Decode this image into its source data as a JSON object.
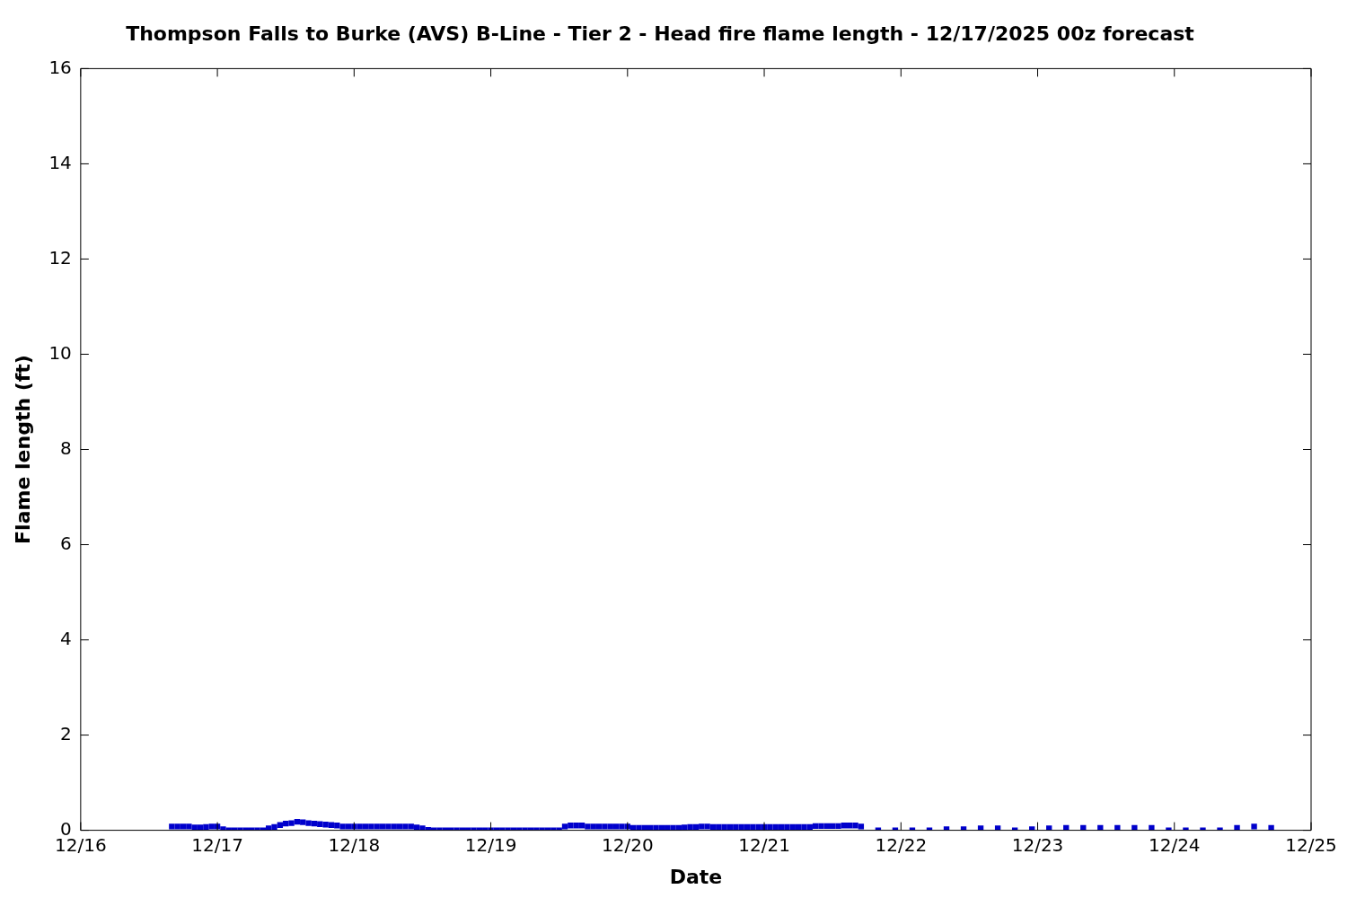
{
  "chart_data": {
    "type": "scatter",
    "title": "Thompson Falls to Burke (AVS) B-Line - Tier 2 - Head fire flame length - 12/17/2025 00z forecast",
    "xlabel": "Date",
    "ylabel": "Flame length (ft)",
    "marker": "square",
    "legend": false,
    "xlim": [
      "2025-12-16",
      "2025-12-25"
    ],
    "xticks": [
      {
        "value": "2025-12-16",
        "label": "12/16"
      },
      {
        "value": "2025-12-17",
        "label": "12/17"
      },
      {
        "value": "2025-12-18",
        "label": "12/18"
      },
      {
        "value": "2025-12-19",
        "label": "12/19"
      },
      {
        "value": "2025-12-20",
        "label": "12/20"
      },
      {
        "value": "2025-12-21",
        "label": "12/21"
      },
      {
        "value": "2025-12-22",
        "label": "12/22"
      },
      {
        "value": "2025-12-23",
        "label": "12/23"
      },
      {
        "value": "2025-12-24",
        "label": "12/24"
      },
      {
        "value": "2025-12-25",
        "label": "12/25"
      }
    ],
    "ylim": [
      0,
      16
    ],
    "yticks": [
      0,
      2,
      4,
      6,
      8,
      10,
      12,
      14,
      16
    ],
    "x": [
      "2025-12-16T16:00",
      "2025-12-16T17:00",
      "2025-12-16T18:00",
      "2025-12-16T19:00",
      "2025-12-16T20:00",
      "2025-12-16T21:00",
      "2025-12-16T22:00",
      "2025-12-16T23:00",
      "2025-12-17T00:00",
      "2025-12-17T01:00",
      "2025-12-17T02:00",
      "2025-12-17T03:00",
      "2025-12-17T04:00",
      "2025-12-17T05:00",
      "2025-12-17T06:00",
      "2025-12-17T07:00",
      "2025-12-17T08:00",
      "2025-12-17T09:00",
      "2025-12-17T10:00",
      "2025-12-17T11:00",
      "2025-12-17T12:00",
      "2025-12-17T13:00",
      "2025-12-17T14:00",
      "2025-12-17T15:00",
      "2025-12-17T16:00",
      "2025-12-17T17:00",
      "2025-12-17T18:00",
      "2025-12-17T19:00",
      "2025-12-17T20:00",
      "2025-12-17T21:00",
      "2025-12-17T22:00",
      "2025-12-17T23:00",
      "2025-12-18T00:00",
      "2025-12-18T01:00",
      "2025-12-18T02:00",
      "2025-12-18T03:00",
      "2025-12-18T04:00",
      "2025-12-18T05:00",
      "2025-12-18T06:00",
      "2025-12-18T07:00",
      "2025-12-18T08:00",
      "2025-12-18T09:00",
      "2025-12-18T10:00",
      "2025-12-18T11:00",
      "2025-12-18T12:00",
      "2025-12-18T13:00",
      "2025-12-18T14:00",
      "2025-12-18T15:00",
      "2025-12-18T16:00",
      "2025-12-18T17:00",
      "2025-12-18T18:00",
      "2025-12-18T19:00",
      "2025-12-18T20:00",
      "2025-12-18T21:00",
      "2025-12-18T22:00",
      "2025-12-18T23:00",
      "2025-12-19T00:00",
      "2025-12-19T01:00",
      "2025-12-19T02:00",
      "2025-12-19T03:00",
      "2025-12-19T04:00",
      "2025-12-19T05:00",
      "2025-12-19T06:00",
      "2025-12-19T07:00",
      "2025-12-19T08:00",
      "2025-12-19T09:00",
      "2025-12-19T10:00",
      "2025-12-19T11:00",
      "2025-12-19T12:00",
      "2025-12-19T13:00",
      "2025-12-19T14:00",
      "2025-12-19T15:00",
      "2025-12-19T16:00",
      "2025-12-19T17:00",
      "2025-12-19T18:00",
      "2025-12-19T19:00",
      "2025-12-19T20:00",
      "2025-12-19T21:00",
      "2025-12-19T22:00",
      "2025-12-19T23:00",
      "2025-12-20T00:00",
      "2025-12-20T01:00",
      "2025-12-20T02:00",
      "2025-12-20T03:00",
      "2025-12-20T04:00",
      "2025-12-20T05:00",
      "2025-12-20T06:00",
      "2025-12-20T07:00",
      "2025-12-20T08:00",
      "2025-12-20T09:00",
      "2025-12-20T10:00",
      "2025-12-20T11:00",
      "2025-12-20T12:00",
      "2025-12-20T13:00",
      "2025-12-20T14:00",
      "2025-12-20T15:00",
      "2025-12-20T16:00",
      "2025-12-20T17:00",
      "2025-12-20T18:00",
      "2025-12-20T19:00",
      "2025-12-20T20:00",
      "2025-12-20T21:00",
      "2025-12-20T22:00",
      "2025-12-20T23:00",
      "2025-12-21T00:00",
      "2025-12-21T01:00",
      "2025-12-21T02:00",
      "2025-12-21T03:00",
      "2025-12-21T04:00",
      "2025-12-21T05:00",
      "2025-12-21T06:00",
      "2025-12-21T07:00",
      "2025-12-21T08:00",
      "2025-12-21T09:00",
      "2025-12-21T10:00",
      "2025-12-21T11:00",
      "2025-12-21T12:00",
      "2025-12-21T13:00",
      "2025-12-21T14:00",
      "2025-12-21T15:00",
      "2025-12-21T16:00",
      "2025-12-21T17:00",
      "2025-12-21T20:00",
      "2025-12-21T23:00",
      "2025-12-22T02:00",
      "2025-12-22T05:00",
      "2025-12-22T08:00",
      "2025-12-22T11:00",
      "2025-12-22T14:00",
      "2025-12-22T17:00",
      "2025-12-22T20:00",
      "2025-12-22T23:00",
      "2025-12-23T02:00",
      "2025-12-23T05:00",
      "2025-12-23T08:00",
      "2025-12-23T11:00",
      "2025-12-23T14:00",
      "2025-12-23T17:00",
      "2025-12-23T20:00",
      "2025-12-23T23:00",
      "2025-12-24T02:00",
      "2025-12-24T05:00",
      "2025-12-24T08:00",
      "2025-12-24T11:00",
      "2025-12-24T14:00",
      "2025-12-24T17:00"
    ],
    "series": [
      {
        "color": "#0000cc",
        "values": [
          0.08,
          0.08,
          0.08,
          0.08,
          0.06,
          0.06,
          0.07,
          0.08,
          0.08,
          0.02,
          0,
          0,
          0,
          0,
          0,
          0,
          0,
          0.04,
          0.07,
          0.11,
          0.14,
          0.15,
          0.18,
          0.17,
          0.15,
          0.14,
          0.13,
          0.12,
          0.11,
          0.1,
          0.08,
          0.08,
          0.08,
          0.08,
          0.08,
          0.08,
          0.08,
          0.08,
          0.08,
          0.08,
          0.08,
          0.08,
          0.08,
          0.06,
          0.04,
          0.01,
          0,
          0,
          0,
          0,
          0,
          0,
          0,
          0,
          0,
          0,
          0,
          0,
          0,
          0,
          0,
          0,
          0,
          0,
          0,
          0,
          0,
          0,
          0,
          0.08,
          0.1,
          0.1,
          0.1,
          0.08,
          0.08,
          0.08,
          0.08,
          0.08,
          0.08,
          0.08,
          0.08,
          0.05,
          0.05,
          0.05,
          0.05,
          0.05,
          0.05,
          0.05,
          0.05,
          0.05,
          0.06,
          0.07,
          0.07,
          0.08,
          0.08,
          0.07,
          0.07,
          0.07,
          0.07,
          0.07,
          0.07,
          0.07,
          0.07,
          0.07,
          0.07,
          0.07,
          0.07,
          0.07,
          0.07,
          0.07,
          0.07,
          0.07,
          0.07,
          0.09,
          0.09,
          0.09,
          0.09,
          0.09,
          0.1,
          0.1,
          0.1,
          0.08,
          0,
          0,
          0,
          0,
          0.02,
          0.02,
          0.04,
          0.04,
          0,
          0.02,
          0.04,
          0.05,
          0.05,
          0.05,
          0.05,
          0.05,
          0.05,
          0,
          0,
          0,
          0,
          0.05,
          0.08,
          0.05
        ]
      }
    ]
  }
}
